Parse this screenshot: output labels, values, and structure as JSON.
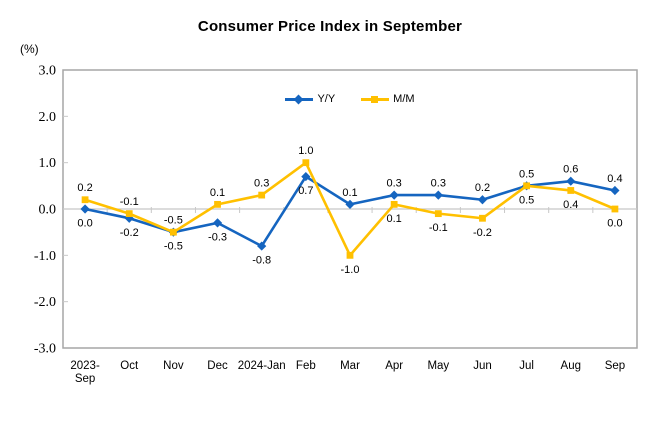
{
  "chart_data": {
    "type": "line",
    "title": "Consumer Price Index in September",
    "unit_label": "(%)",
    "categories": [
      "2023-Sep",
      "Oct",
      "Nov",
      "Dec",
      "2024-Jan",
      "Feb",
      "Mar",
      "Apr",
      "May",
      "Jun",
      "Jul",
      "Aug",
      "Sep"
    ],
    "category_display": [
      [
        "2023-",
        "Sep"
      ],
      [
        "Oct"
      ],
      [
        "Nov"
      ],
      [
        "Dec"
      ],
      [
        "2024-Jan"
      ],
      [
        "Feb"
      ],
      [
        "Mar"
      ],
      [
        "Apr"
      ],
      [
        "May"
      ],
      [
        "Jun"
      ],
      [
        "Jul"
      ],
      [
        "Aug"
      ],
      [
        "Sep"
      ]
    ],
    "ylim": [
      -3.0,
      3.0
    ],
    "yticks": [
      "3.0",
      "2.0",
      "1.0",
      "0.0",
      "-1.0",
      "-2.0",
      "-3.0"
    ],
    "grid": "zero-line-only",
    "legend_position": "top-center-inside",
    "colors": {
      "axis_border": "#a6a6a6",
      "zero_line": "#c8c8c8",
      "text": "#000000",
      "background": "#ffffff"
    },
    "series": [
      {
        "name": "Y/Y",
        "color": "#1565c0",
        "marker": "diamond",
        "values": [
          0.0,
          -0.2,
          -0.5,
          -0.3,
          -0.8,
          0.7,
          0.1,
          0.3,
          0.3,
          0.2,
          0.5,
          0.6,
          0.4
        ],
        "labels": [
          "0.0",
          "-0.2",
          "-0.5",
          "-0.3",
          "-0.8",
          "0.7",
          "0.1",
          "0.3",
          "0.3",
          "0.2",
          "0.5",
          "0.6",
          "0.4"
        ],
        "label_positions": [
          "below",
          "below",
          "below",
          "below",
          "below",
          "below",
          "above",
          "above",
          "above",
          "above",
          "above",
          "above",
          "above"
        ]
      },
      {
        "name": "M/M",
        "color": "#ffc000",
        "marker": "square",
        "values": [
          0.2,
          -0.1,
          -0.5,
          0.1,
          0.3,
          1.0,
          -1.0,
          0.1,
          -0.1,
          -0.2,
          0.5,
          0.4,
          0.0
        ],
        "labels": [
          "0.2",
          "-0.1",
          "-0.5",
          "0.1",
          "0.3",
          "1.0",
          "-1.0",
          "0.1",
          "-0.1",
          "-0.2",
          "0.5",
          "0.4",
          "0.0"
        ],
        "label_positions": [
          "above",
          "above",
          "above",
          "above",
          "above",
          "above",
          "below",
          "below",
          "below",
          "below",
          "below",
          "below",
          "below"
        ]
      }
    ]
  }
}
